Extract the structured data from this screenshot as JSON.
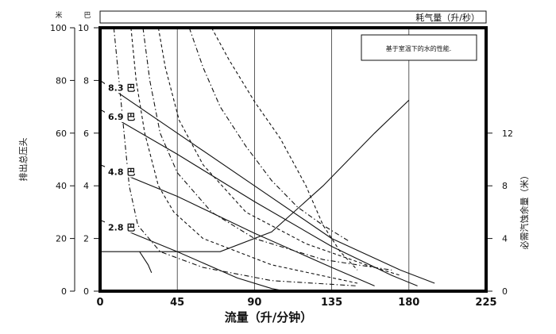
{
  "chart_data": {
    "type": "line",
    "title": "",
    "note": "基于室温下的水的性能.",
    "top_band_label": "耗气量（升/秒）",
    "xlabel": "流量（升/分钟）",
    "left_outer_unit": "米",
    "left_inner_unit": "巴",
    "left_outer_label": "排出总压头",
    "right_label": "必需汽蚀余量（米）",
    "x_ticks": [
      "0",
      "45",
      "90",
      "135",
      "180",
      "225"
    ],
    "xlim": [
      0,
      225
    ],
    "y_left_outer_ticks": [
      "0",
      "20",
      "40",
      "60",
      "80",
      "100"
    ],
    "y_left_outer_lim": [
      0,
      100
    ],
    "y_left_inner_ticks": [
      "0",
      "2",
      "4",
      "6",
      "8",
      "10"
    ],
    "y_left_inner_lim": [
      0,
      10
    ],
    "y_right_ticks": [
      "0",
      "4",
      "8",
      "12"
    ],
    "y_right_lim": [
      0,
      20
    ],
    "grid": "vertical",
    "series": [
      {
        "name": "8.3 巴",
        "style": "solid",
        "points": [
          [
            0,
            80
          ],
          [
            45,
            60
          ],
          [
            90,
            40
          ],
          [
            135,
            20
          ],
          [
            175,
            8
          ],
          [
            195,
            3
          ]
        ]
      },
      {
        "name": "6.9 巴",
        "style": "solid",
        "points": [
          [
            0,
            69
          ],
          [
            45,
            52
          ],
          [
            90,
            34
          ],
          [
            135,
            17
          ],
          [
            170,
            6
          ],
          [
            185,
            2
          ]
        ]
      },
      {
        "name": "4.8 巴",
        "style": "solid",
        "points": [
          [
            0,
            48
          ],
          [
            45,
            36
          ],
          [
            90,
            22
          ],
          [
            135,
            9
          ],
          [
            160,
            2
          ]
        ]
      },
      {
        "name": "2.8 巴",
        "style": "solid",
        "points": [
          [
            0,
            27
          ],
          [
            45,
            15
          ],
          [
            80,
            5
          ],
          [
            100,
            1
          ],
          [
            108,
            0
          ]
        ]
      },
      {
        "name": "",
        "style": "solid",
        "axis": "right",
        "points": [
          [
            0,
            3
          ],
          [
            45,
            3
          ],
          [
            70,
            3
          ],
          [
            100,
            4.5
          ],
          [
            130,
            8
          ],
          [
            160,
            12
          ],
          [
            180,
            14.5
          ]
        ]
      },
      {
        "name": "",
        "style": "dashed",
        "points": [
          [
            18,
            100
          ],
          [
            21,
            80
          ],
          [
            26,
            60
          ],
          [
            34,
            40
          ],
          [
            43,
            30
          ],
          [
            60,
            20
          ],
          [
            100,
            10
          ],
          [
            150,
            3
          ]
        ]
      },
      {
        "name": "",
        "style": "dashed",
        "points": [
          [
            34,
            100
          ],
          [
            38,
            85
          ],
          [
            46,
            65
          ],
          [
            60,
            48
          ],
          [
            85,
            30
          ],
          [
            120,
            18
          ],
          [
            155,
            10
          ],
          [
            175,
            6
          ]
        ]
      },
      {
        "name": "",
        "style": "dashed",
        "points": [
          [
            65,
            100
          ],
          [
            75,
            88
          ],
          [
            90,
            72
          ],
          [
            105,
            58
          ],
          [
            120,
            40
          ],
          [
            130,
            25
          ],
          [
            140,
            15
          ],
          [
            150,
            8
          ]
        ]
      },
      {
        "name": "",
        "style": "dashdot",
        "points": [
          [
            8,
            100
          ],
          [
            11,
            80
          ],
          [
            14,
            60
          ],
          [
            17,
            40
          ],
          [
            22,
            25
          ],
          [
            35,
            15
          ],
          [
            60,
            9
          ],
          [
            100,
            4
          ],
          [
            150,
            2
          ]
        ]
      },
      {
        "name": "",
        "style": "dashdot",
        "points": [
          [
            25,
            100
          ],
          [
            29,
            80
          ],
          [
            35,
            60
          ],
          [
            45,
            45
          ],
          [
            65,
            30
          ],
          [
            90,
            20
          ],
          [
            130,
            12
          ],
          [
            170,
            8
          ]
        ]
      },
      {
        "name": "",
        "style": "dashdot",
        "points": [
          [
            52,
            100
          ],
          [
            60,
            85
          ],
          [
            70,
            70
          ],
          [
            85,
            55
          ],
          [
            100,
            42
          ],
          [
            115,
            32
          ],
          [
            130,
            25
          ],
          [
            145,
            19
          ]
        ]
      },
      {
        "name": "",
        "style": "solid",
        "points": [
          [
            23,
            15
          ],
          [
            26,
            12
          ],
          [
            28,
            10
          ],
          [
            30,
            7
          ]
        ]
      }
    ]
  }
}
